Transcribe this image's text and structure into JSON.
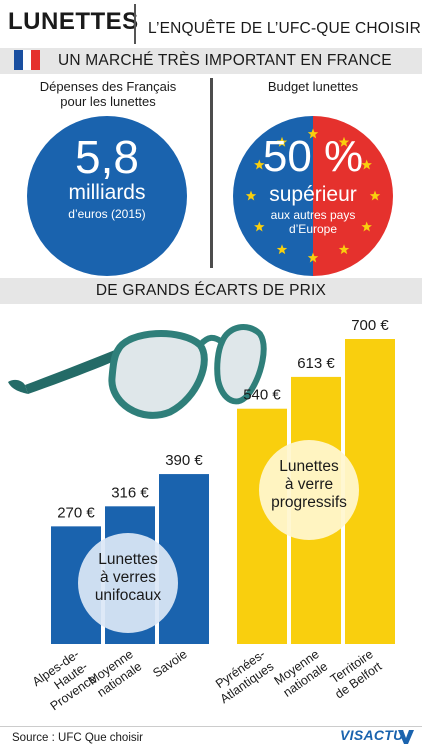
{
  "header": {
    "title": "LUNETTES",
    "subtitle": "L’ENQUÊTE DE L’UFC-QUE CHOISIR"
  },
  "section1": {
    "title": "UN MARCHÉ TRÈS IMPORTANT EN FRANCE"
  },
  "stat_left": {
    "label_line1": "Dépenses des Français",
    "label_line2": "pour les lunettes",
    "big": "5,8",
    "mid": "milliards",
    "small": "d’euros (2015)"
  },
  "stat_right": {
    "label": "Budget lunettes",
    "big": "50 %",
    "mid": "supérieur",
    "small_line1": "aux autres pays",
    "small_line2": "d’Europe"
  },
  "section2": {
    "title": "DE GRANDS ÉCARTS DE PRIX"
  },
  "colors": {
    "blue": "#1a63ae",
    "yellow": "#f9cf0e",
    "red": "#e5312d",
    "band": "#e6e6e6",
    "frame": "#2f7f7a"
  },
  "chart_data": {
    "type": "bar",
    "unit": "€",
    "groups": [
      {
        "name_lines": [
          "Lunettes",
          "à verres",
          "unifocaux"
        ],
        "color": "#1a63ae",
        "bars": [
          {
            "category_lines": [
              "Alpes-de-",
              "Haute-",
              "Provence"
            ],
            "value": 270,
            "value_label": "270 €"
          },
          {
            "category_lines": [
              "Moyenne",
              "nationale"
            ],
            "value": 316,
            "value_label": "316 €"
          },
          {
            "category_lines": [
              "Savoie"
            ],
            "value": 390,
            "value_label": "390 €"
          }
        ]
      },
      {
        "name_lines": [
          "Lunettes",
          "à verre",
          "progressifs"
        ],
        "color": "#f9cf0e",
        "bars": [
          {
            "category_lines": [
              "Pyrénées-",
              "Atlantiques"
            ],
            "value": 540,
            "value_label": "540 €"
          },
          {
            "category_lines": [
              "Moyenne",
              "nationale"
            ],
            "value": 613,
            "value_label": "613 €"
          },
          {
            "category_lines": [
              "Territoire",
              "de Belfort"
            ],
            "value": 700,
            "value_label": "700 €"
          }
        ]
      }
    ]
  },
  "footer": {
    "source": "Source : UFC Que choisir",
    "logo": "VISACTU"
  }
}
